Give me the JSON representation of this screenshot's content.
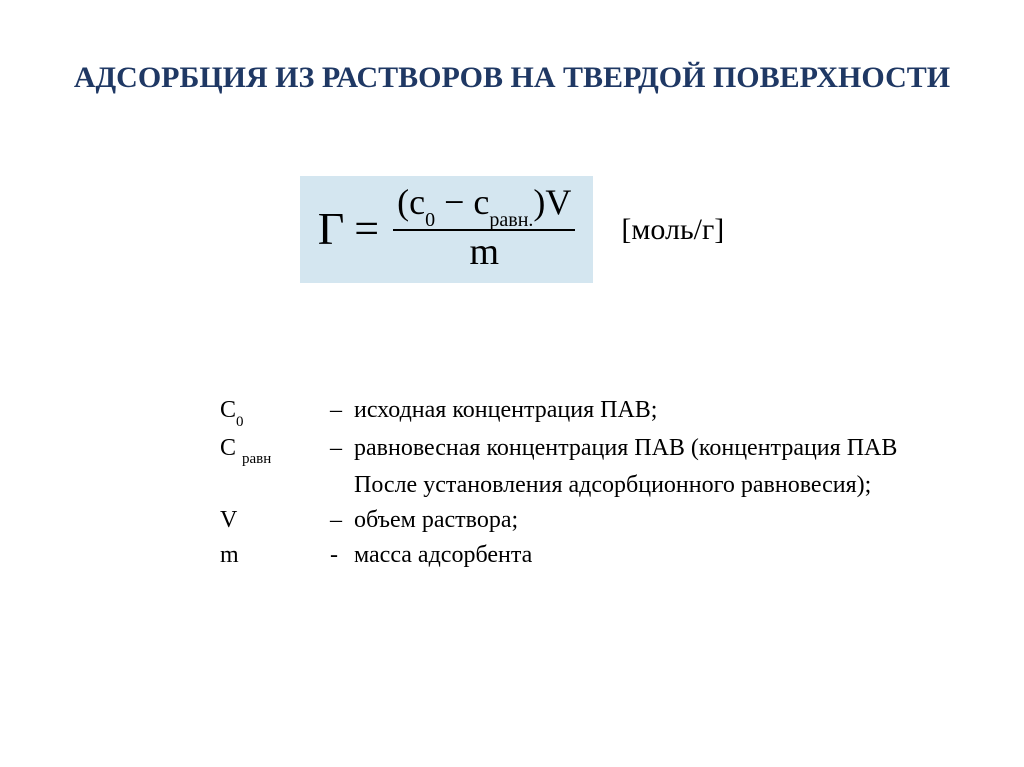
{
  "colors": {
    "background": "#ffffff",
    "title_color": "#1f3864",
    "formula_bg": "#d4e6f0",
    "text_color": "#000000"
  },
  "title": {
    "text": "АДСОРБЦИЯ ИЗ РАСТВОРОВ НА ТВЕРДОЙ ПОВЕРХНОСТИ",
    "fontsize": 30
  },
  "formula": {
    "lhs": "Г",
    "eq": "=",
    "num_open": "(",
    "num_c0": "c",
    "num_c0_sub": "0",
    "num_minus": " − ",
    "num_cr": "c",
    "num_cr_sub": "равн.",
    "num_close": ")",
    "num_V": "V",
    "denom": "m",
    "unit": "[моль/г]"
  },
  "definitions": {
    "c0": {
      "sym": "С",
      "sub": "0",
      "dash": "–",
      "text": "исходная концентрация ПАВ;"
    },
    "cr": {
      "sym": "С ",
      "sub": "равн",
      "dash": "–",
      "text": "равновесная концентрация ПАВ (концентрация ПАВ"
    },
    "cr_cont": {
      "text": "После установления адсорбционного равновесия);"
    },
    "v": {
      "sym": "V",
      "dash": "–",
      "text": "объем раствора;"
    },
    "m": {
      "sym": "m",
      "dash": "-",
      "text": "масса адсорбента"
    }
  }
}
